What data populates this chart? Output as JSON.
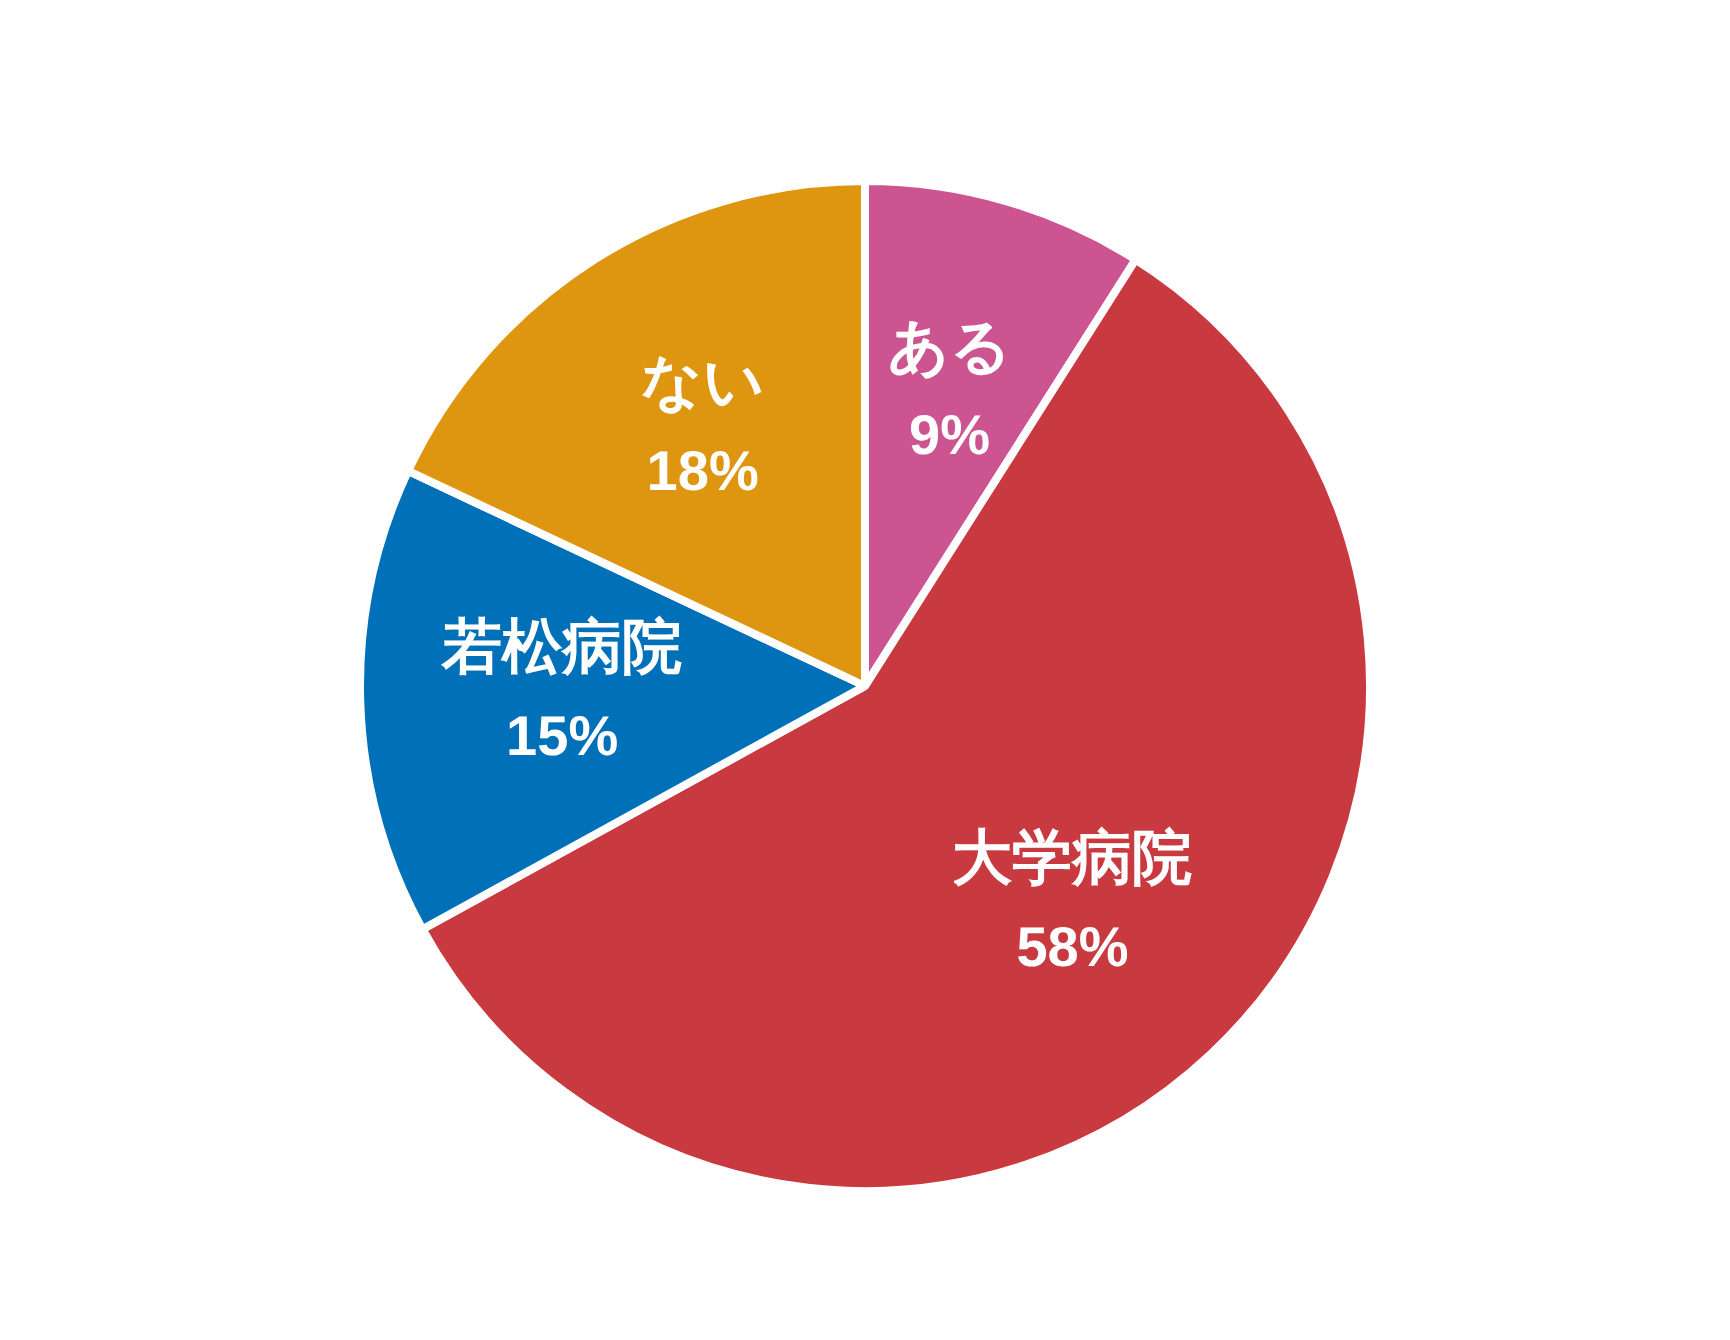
{
  "chart_data": {
    "type": "pie",
    "categories": [
      "ある",
      "大学病院",
      "若松病院",
      "ない"
    ],
    "values": [
      9,
      58,
      15,
      18
    ],
    "colors": [
      "#cc5490",
      "#c93a40",
      "#0070b9",
      "#de9610"
    ],
    "value_labels": [
      "9%",
      "58%",
      "15%",
      "18%"
    ],
    "legend": false
  }
}
